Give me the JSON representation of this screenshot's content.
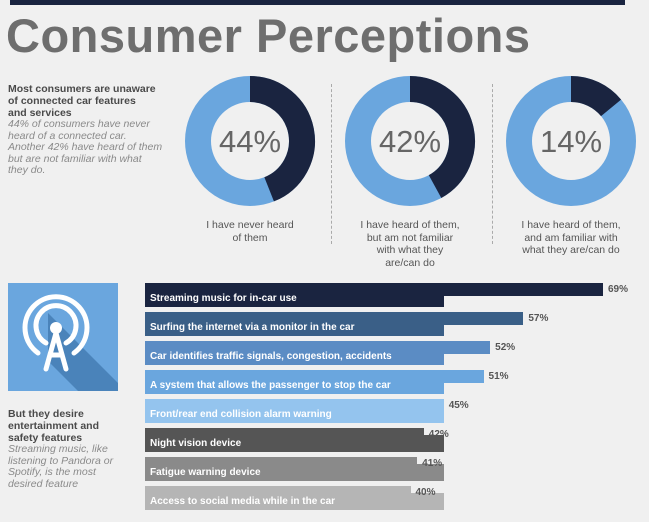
{
  "title": "Consumer Perceptions",
  "intro": {
    "heading_lines": [
      "Most consumers are unaware",
      "of connected car features",
      "and services"
    ],
    "body_lines": [
      "44% of consumers have never",
      "heard of a connected car.",
      "Another 42% have heard of them",
      "but are not familiar with what",
      "they do."
    ]
  },
  "colors": {
    "dark": "#1a2440",
    "light": "#6aa6de"
  },
  "chart_data": [
    {
      "type": "pie",
      "values": [
        44,
        42,
        14
      ],
      "value_labels": [
        "44%",
        "42%",
        "14%"
      ],
      "categories": [
        [
          "I have never heard",
          "of them"
        ],
        [
          "I have heard of them,",
          "but am not familiar",
          "with what they",
          "are/can do"
        ],
        [
          "I have heard of them,",
          "and am familiar with",
          "what they are/can do"
        ]
      ]
    },
    {
      "type": "bar",
      "categories": [
        "Streaming music for in-car use",
        "Surfing the internet via a monitor in the car",
        "Car identifies traffic signals, congestion, accidents",
        "A system that allows the passenger to stop the car",
        "Front/rear end collision alarm warning",
        "Night vision device",
        "Fatigue warning device",
        "Access to social media while in the car"
      ],
      "values": [
        69,
        57,
        52,
        51,
        45,
        42,
        41,
        40
      ],
      "value_labels": [
        "69%",
        "57%",
        "52%",
        "51%",
        "45%",
        "42%",
        "41%",
        "40%"
      ],
      "colors": [
        "#1a2440",
        "#3a5f87",
        "#5b8cc4",
        "#6aa6de",
        "#94c4ee",
        "#555555",
        "#8a8a8a",
        "#b5b5b5"
      ]
    }
  ],
  "lower": {
    "heading_lines": [
      "But they desire",
      "entertainment and",
      "safety features"
    ],
    "body_lines": [
      "Streaming music, like",
      "listening to Pandora or",
      "Spotify, is the most",
      "desired feature"
    ]
  },
  "icon": "antenna-broadcast-icon"
}
